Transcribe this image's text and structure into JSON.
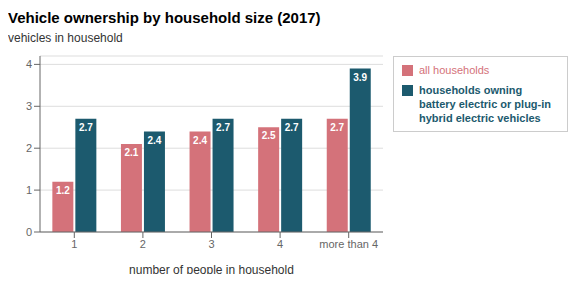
{
  "chart_data": {
    "type": "bar",
    "title": "Vehicle ownership by household size (2017)",
    "ylabel": "vehicles in household",
    "xlabel": "number of people in household",
    "categories": [
      "1",
      "2",
      "3",
      "4",
      "more than 4"
    ],
    "series": [
      {
        "name": "all households",
        "color": "#d4727a",
        "values": [
          1.2,
          2.1,
          2.4,
          2.5,
          2.7
        ]
      },
      {
        "name": "households owning\nbattery electric or plug-in\nhybrid electric vehicles",
        "color": "#1c5a6e",
        "values": [
          2.7,
          2.4,
          2.7,
          2.7,
          3.9
        ]
      }
    ],
    "ylim": [
      0,
      4.2
    ],
    "yticks": [
      0,
      1,
      2,
      3,
      4
    ],
    "grid": true,
    "legend": "upper right",
    "data_labels": true
  }
}
